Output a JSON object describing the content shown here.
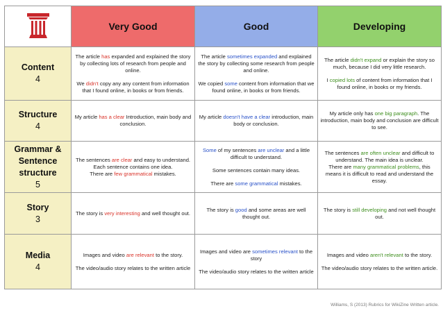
{
  "header": {
    "very_good": "Very Good",
    "good": "Good",
    "developing": "Developing"
  },
  "colors": {
    "very_good": "#ee6b6b",
    "good": "#94ade8",
    "developing": "#93d16d",
    "criteria": "#f5f0c4",
    "logo": "#c8262b",
    "red_text": "#d9342b",
    "blue_text": "#2a52c8",
    "green_text": "#3f8f1f"
  },
  "logo_icon": "pillar-logo-icon",
  "rows": {
    "content": {
      "name": "Content",
      "points": "4",
      "very_good": {
        "p1a": "The article ",
        "p1b": "has",
        "p1c": " expanded and explained the story by collecting lots of research from people and online.",
        "p2a": "We ",
        "p2b": "didn't",
        "p2c": " copy any any content from information that I found online, in books or from friends."
      },
      "good": {
        "p1a": "The article ",
        "p1b": "sometimes expanded",
        "p1c": " and explained the story by collecting some research from people and online.",
        "p2a": "We copied ",
        "p2b": "some",
        "p2c": " content from information that we found online, in books or from friends."
      },
      "developing": {
        "p1a": "The article ",
        "p1b": "didn't expand",
        "p1c": " or explain the story so much, because I did very little research.",
        "p2a": "I ",
        "p2b": "copied lots",
        "p2c": " of content from information that I found online, in books or my friends."
      }
    },
    "structure": {
      "name": "Structure",
      "points": "4",
      "very_good": {
        "a": "My article ",
        "b": "has a clear",
        "c": " Introduction, main body and conclusion."
      },
      "good": {
        "a": "My article ",
        "b": "doesn't have a clear",
        "c": " introduction, main body or conclusion."
      },
      "developing": {
        "a": "My article only has ",
        "b": "one big paragraph",
        "c": ". The introduction, main body and conclusion are difficult to see."
      }
    },
    "grammar": {
      "name_line1": "Grammar &",
      "name_line2": "Sentence",
      "name_line3": "structure",
      "points": "5",
      "very_good": {
        "p1a": "The sentences ",
        "p1b": "are clear",
        "p1c": " and easy to understand.",
        "p2": "Each sentence contains one idea.",
        "p3a": "There are ",
        "p3b": "few grammatical",
        "p3c": " mistakes."
      },
      "good": {
        "p1a": "Some",
        "p1b": " of my sentences ",
        "p1c": "are unclear",
        "p1d": " and a little difficult to understand.",
        "p2": "Some sentences contain many ideas.",
        "p3a": "There are ",
        "p3b": "some grammatical",
        "p3c": " mistakes."
      },
      "developing": {
        "p1a": "The sentences ",
        "p1b": "are often unclear",
        "p1c": " and difficult to understand. The main idea is unclear.",
        "p2a": "There are ",
        "p2b": "many grammatical problems",
        "p2c": ", this means it is difficult to read and understand the essay."
      }
    },
    "story": {
      "name": "Story",
      "points": "3",
      "very_good": {
        "a": "The story is ",
        "b": "very interesting",
        "c": " and well thought out."
      },
      "good": {
        "a": "The story is ",
        "b": "good",
        "c": " and some areas are well thought out."
      },
      "developing": {
        "a": "The story is ",
        "b": "still developing",
        "c": " and not well thought out."
      }
    },
    "media": {
      "name": "Media",
      "points": "4",
      "very_good": {
        "p1a": "Images and video ",
        "p1b": "are relevant",
        "p1c": " to the story.",
        "p2": "The video/audio story relates to the written article"
      },
      "good": {
        "p1a": "Images and video are ",
        "p1b": "sometimes relevant",
        "p1c": " to the story",
        "p2": "The video/audio story relates to the written article"
      },
      "developing": {
        "p1a": "Images and video ",
        "p1b": "aren't relevant",
        "p1c": " to the story.",
        "p2": "The video/audio story relates to the written article."
      }
    }
  },
  "citation": "Williams, S (2013) Rubrics for WikiZine Written article."
}
